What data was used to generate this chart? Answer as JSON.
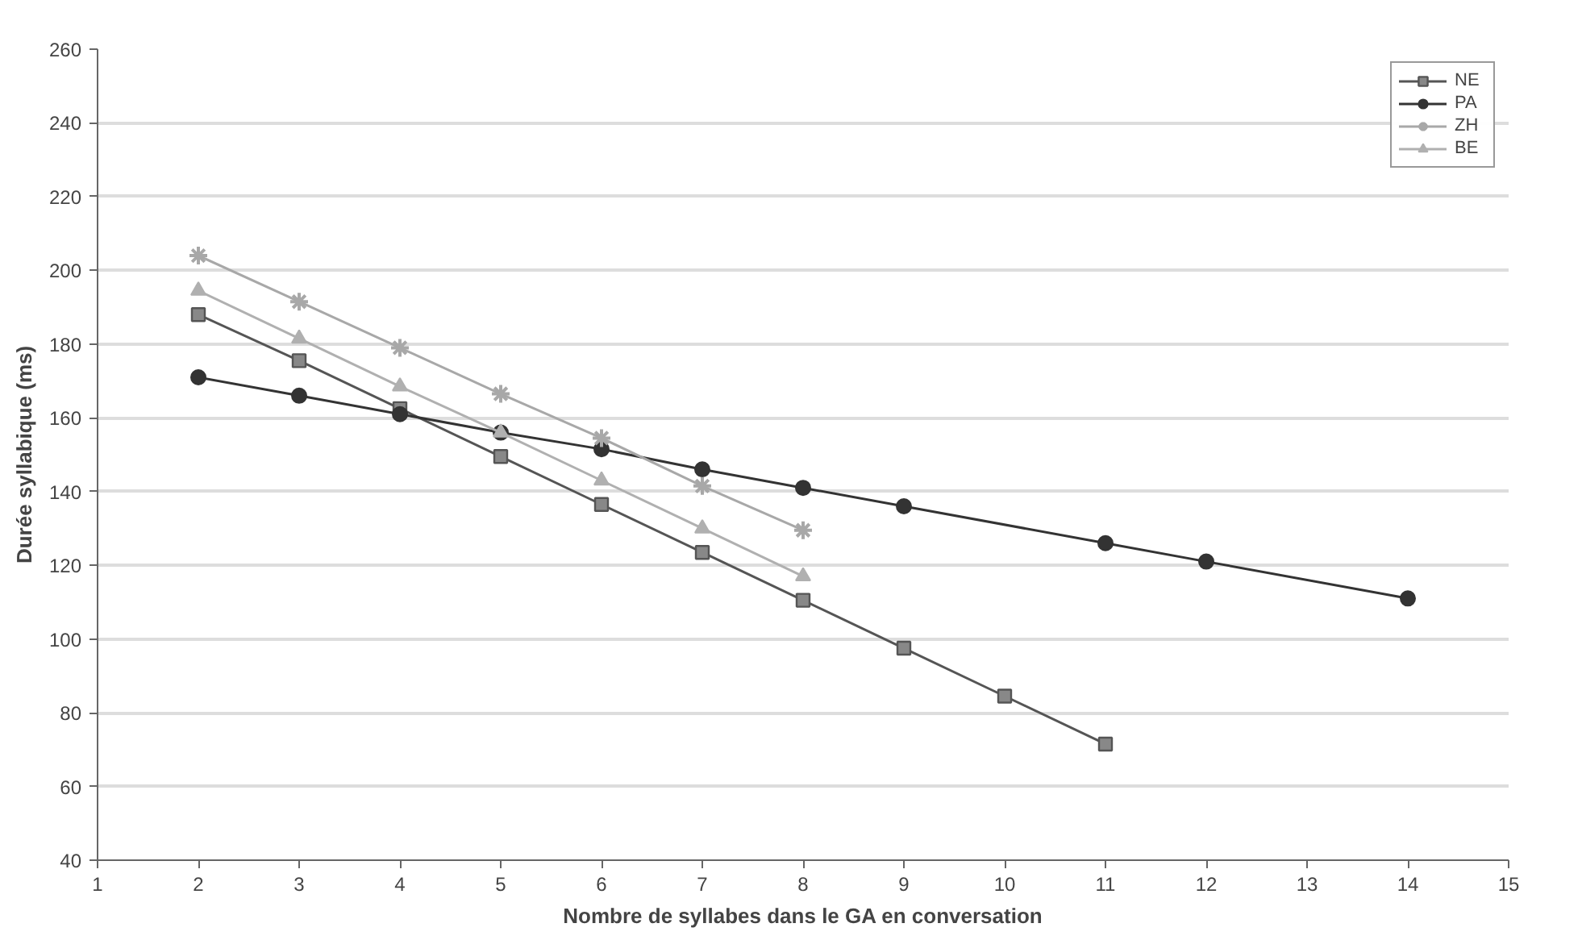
{
  "chart_data": {
    "type": "line",
    "xlabel": "Nombre de syllabes dans le GA en conversation",
    "ylabel": "Durée syllabique (ms)",
    "xlim": [
      1,
      15
    ],
    "xticks": [
      1,
      2,
      3,
      4,
      5,
      6,
      7,
      8,
      9,
      10,
      11,
      12,
      13,
      14,
      15
    ],
    "ylim": [
      40,
      260
    ],
    "yticks": [
      40,
      60,
      80,
      100,
      120,
      140,
      160,
      180,
      200,
      220,
      240,
      260
    ],
    "grid": "y",
    "legend": "top right",
    "series": [
      {
        "name": "NE",
        "color": "#555555",
        "marker": "square",
        "x": [
          2,
          3,
          4,
          5,
          6,
          7,
          8,
          9,
          10,
          11
        ],
        "values": [
          188,
          175.5,
          162.5,
          149.5,
          136.5,
          123.5,
          110.5,
          97.5,
          84.5,
          71.5
        ]
      },
      {
        "name": "PA",
        "color": "#333333",
        "marker": "circle",
        "x": [
          2,
          3,
          4,
          5,
          6,
          7,
          8,
          9,
          11,
          12,
          14
        ],
        "values": [
          171,
          166,
          161,
          156,
          151.5,
          146,
          141,
          136,
          126,
          121,
          111
        ]
      },
      {
        "name": "ZH",
        "color": "#a8a8a8",
        "marker": "cross",
        "x": [
          2,
          3,
          4,
          5,
          6,
          7,
          8
        ],
        "values": [
          204,
          191.5,
          179,
          166.5,
          154.5,
          141.5,
          129.5
        ]
      },
      {
        "name": "BE",
        "color": "#b0b0b0",
        "marker": "triangle",
        "x": [
          2,
          3,
          4,
          5,
          6,
          7,
          8
        ],
        "values": [
          194.5,
          181.5,
          168.5,
          156,
          143,
          130,
          117
        ]
      }
    ]
  }
}
